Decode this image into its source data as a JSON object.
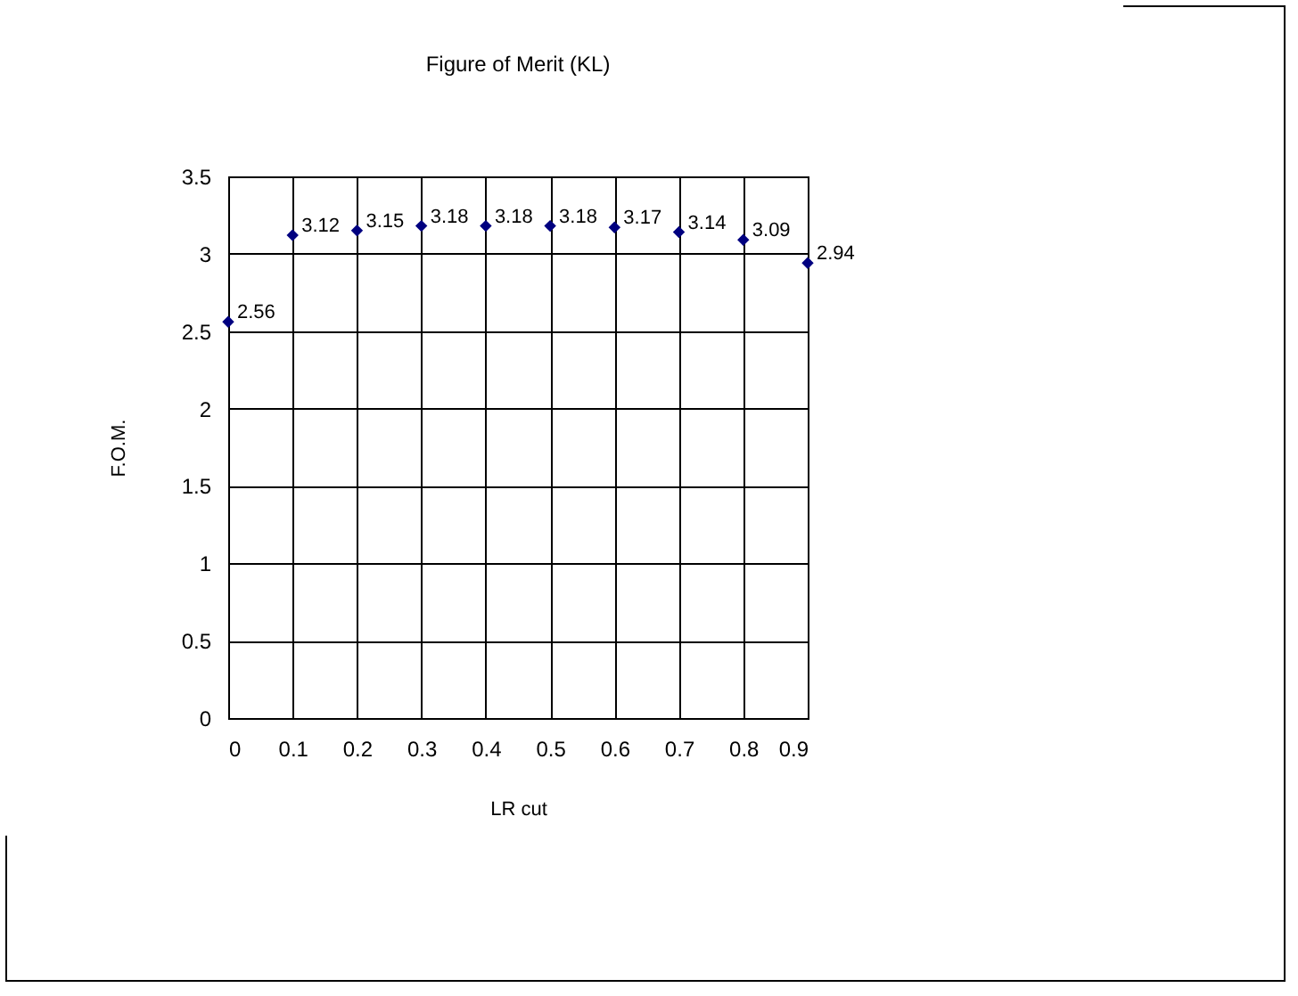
{
  "chart_data": {
    "type": "scatter",
    "title": "Figure of Merit (KL)",
    "xlabel": "LR cut",
    "ylabel": "F.O.M.",
    "x": [
      0,
      0.1,
      0.2,
      0.3,
      0.4,
      0.5,
      0.6,
      0.7,
      0.8,
      0.9
    ],
    "series": [
      {
        "color": "#000080",
        "values": [
          2.56,
          3.12,
          3.15,
          3.18,
          3.18,
          3.18,
          3.17,
          3.14,
          3.09,
          2.94
        ]
      }
    ],
    "xlim": [
      0,
      0.9
    ],
    "xticks": [
      0,
      0.1,
      0.2,
      0.3,
      0.4,
      0.5,
      0.6,
      0.7,
      0.8,
      0.9
    ],
    "ylim": [
      0,
      3.5
    ],
    "yticks": [
      0,
      0.5,
      1,
      1.5,
      2,
      2.5,
      3,
      3.5
    ],
    "grid": true,
    "marker": "diamond",
    "data_labels": true,
    "legend": false
  }
}
